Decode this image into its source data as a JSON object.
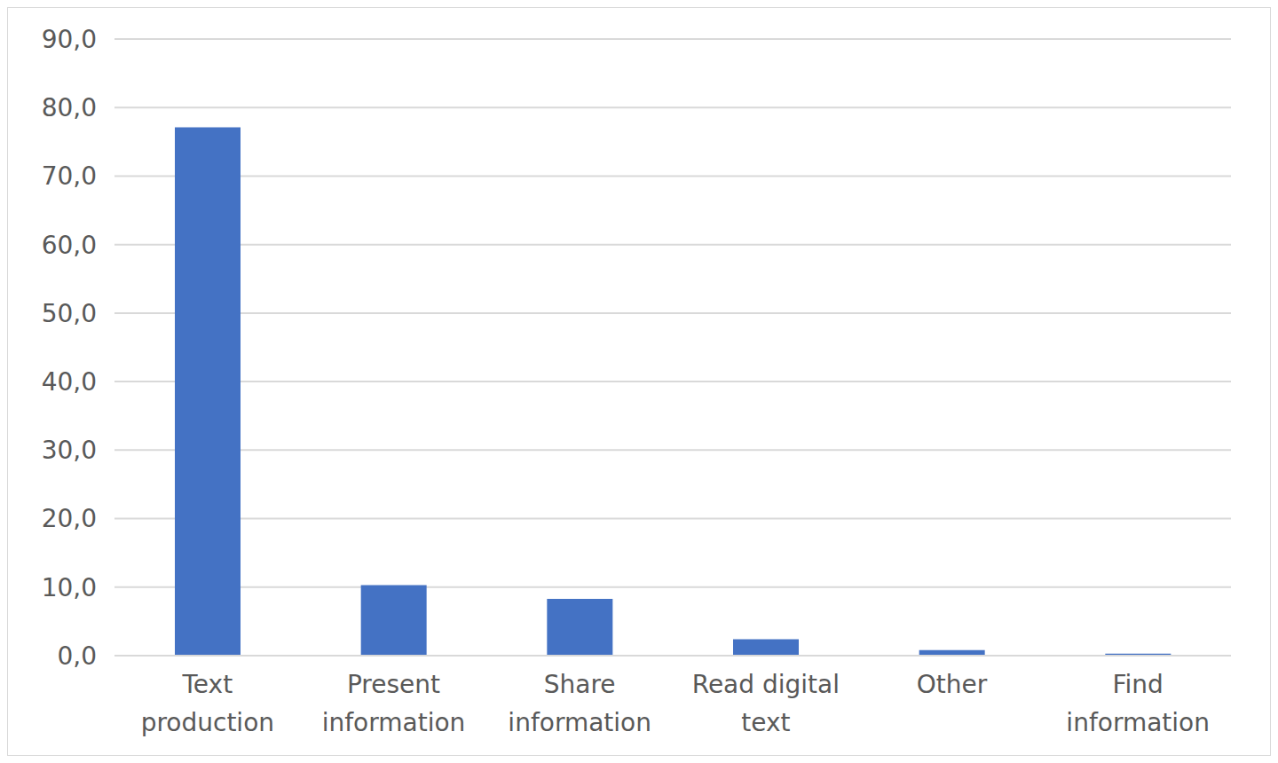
{
  "chart_data": {
    "type": "bar",
    "categories": [
      "Text production",
      "Present information",
      "Share information",
      "Read digital text",
      "Other",
      "Find information"
    ],
    "values": [
      77.1,
      10.3,
      8.3,
      2.4,
      0.8,
      0.3
    ],
    "color": "#4472c4",
    "ylim": [
      0,
      90
    ],
    "yticks": [
      {
        "value": 0,
        "label": "0,0"
      },
      {
        "value": 10,
        "label": "10,0"
      },
      {
        "value": 20,
        "label": "20,0"
      },
      {
        "value": 30,
        "label": "30,0"
      },
      {
        "value": 40,
        "label": "40,0"
      },
      {
        "value": 50,
        "label": "50,0"
      },
      {
        "value": 60,
        "label": "60,0"
      },
      {
        "value": 70,
        "label": "70,0"
      },
      {
        "value": 80,
        "label": "80,0"
      },
      {
        "value": 90,
        "label": "90,0"
      }
    ],
    "grid": true
  }
}
